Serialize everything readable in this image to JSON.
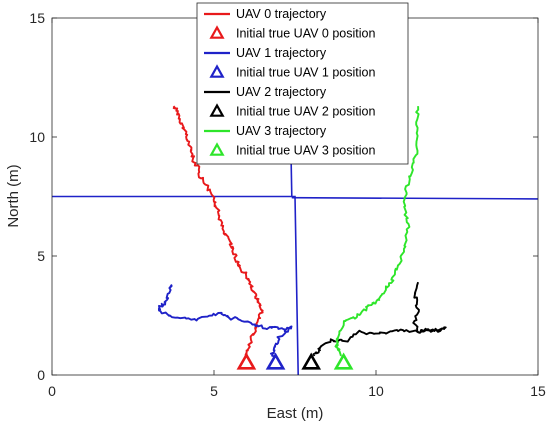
{
  "chart_data": {
    "type": "line",
    "title": "",
    "xlabel": "East (m)",
    "ylabel": "North (m)",
    "xlim": [
      0,
      15
    ],
    "ylim": [
      0,
      15
    ],
    "xticks": [
      "0",
      "5",
      "10",
      "15"
    ],
    "yticks": [
      "0",
      "5",
      "10",
      "15"
    ],
    "grid": false,
    "legend_position": "top-center",
    "walls": [
      {
        "x": [
          0.0,
          7.4
        ],
        "y": [
          7.5,
          7.5
        ]
      },
      {
        "x": [
          7.4,
          15.0
        ],
        "y": [
          7.45,
          7.4
        ]
      },
      {
        "x": [
          7.3,
          7.4,
          7.5,
          7.6
        ],
        "y": [
          15.0,
          7.5,
          7.5,
          0.0
        ]
      }
    ],
    "series": [
      {
        "name": "UAV 0 trajectory",
        "marker_name": "Initial true UAV 0 position",
        "color": "#e8191b",
        "x": [
          3.75,
          3.9,
          4.0,
          4.1,
          4.2,
          4.3,
          4.35,
          4.5,
          4.6,
          4.8,
          5.0,
          5.1,
          5.2,
          5.3,
          5.5,
          5.6,
          5.7,
          5.8,
          6.0,
          6.1,
          6.2,
          6.3,
          6.4,
          6.5,
          6.4,
          6.3,
          6.15,
          6.0,
          6.0
        ],
        "y": [
          11.3,
          11.0,
          10.6,
          10.2,
          9.8,
          9.5,
          9.1,
          8.7,
          8.3,
          7.9,
          7.4,
          7.0,
          6.5,
          6.0,
          5.6,
          5.2,
          4.8,
          4.5,
          4.2,
          3.9,
          3.6,
          3.3,
          3.0,
          2.7,
          2.4,
          2.0,
          1.5,
          1.0,
          0.8
        ],
        "start": [
          6.0,
          0.5
        ]
      },
      {
        "name": "UAV 1 trajectory",
        "marker_name": "Initial true UAV 1 position",
        "color": "#1f22c8",
        "x": [
          3.7,
          3.6,
          3.5,
          3.35,
          3.3,
          3.6,
          4.0,
          4.4,
          4.8,
          5.2,
          5.5,
          5.9,
          6.3,
          6.6,
          6.9,
          7.2,
          7.4,
          7.0,
          6.9,
          6.8,
          6.85
        ],
        "y": [
          3.8,
          3.4,
          3.0,
          2.9,
          2.7,
          2.5,
          2.4,
          2.3,
          2.5,
          2.6,
          2.4,
          2.3,
          2.1,
          1.95,
          2.0,
          1.9,
          2.0,
          1.6,
          1.2,
          0.9,
          0.8
        ],
        "start": [
          6.9,
          0.5
        ]
      },
      {
        "name": "UAV 2 trajectory",
        "marker_name": "Initial true UAV 2 position",
        "color": "#000000",
        "x": [
          11.3,
          11.2,
          11.3,
          11.2,
          11.3,
          11.5,
          11.9,
          12.2,
          11.8,
          11.3,
          10.8,
          10.4,
          9.9,
          9.5,
          9.0,
          8.6,
          8.3,
          8.2,
          8.1
        ],
        "y": [
          3.9,
          3.3,
          2.7,
          2.2,
          1.8,
          1.9,
          1.85,
          1.95,
          1.9,
          1.8,
          1.85,
          1.8,
          1.7,
          1.8,
          1.4,
          1.5,
          1.2,
          1.0,
          0.8
        ],
        "start": [
          8.0,
          0.5
        ]
      },
      {
        "name": "UAV 3 trajectory",
        "marker_name": "Initial true UAV 3 position",
        "color": "#2ee52a",
        "x": [
          11.3,
          11.25,
          11.3,
          11.2,
          11.1,
          10.9,
          10.9,
          11.0,
          10.9,
          10.8,
          10.6,
          10.5,
          10.3,
          10.1,
          9.9,
          9.7,
          9.5,
          9.3,
          9.0,
          8.8,
          8.8,
          8.9
        ],
        "y": [
          11.3,
          10.5,
          9.8,
          9.1,
          8.4,
          7.7,
          7.0,
          6.3,
          5.6,
          4.9,
          4.4,
          4.0,
          3.6,
          3.2,
          3.0,
          2.8,
          2.6,
          2.4,
          2.2,
          1.6,
          1.2,
          0.8
        ],
        "start": [
          9.0,
          0.5
        ]
      }
    ]
  }
}
